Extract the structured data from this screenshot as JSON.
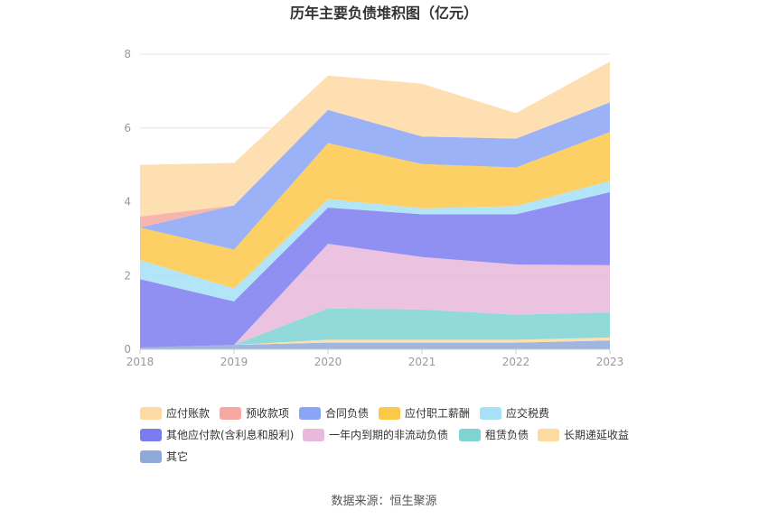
{
  "chart_data": {
    "type": "area",
    "stacked": true,
    "title": "历年主要负债堆积图（亿元）",
    "source": "数据来源：恒生聚源",
    "categories": [
      "2018",
      "2019",
      "2020",
      "2021",
      "2022",
      "2023"
    ],
    "ylim": [
      0,
      8
    ],
    "yticks": [
      0,
      2,
      4,
      6,
      8
    ],
    "grid": true,
    "legend_position": "bottom",
    "series": [
      {
        "name": "其它",
        "color": "#8eaadb",
        "values": [
          0.05,
          0.12,
          0.18,
          0.18,
          0.18,
          0.24
        ]
      },
      {
        "name": "长期递延收益",
        "color": "#fddba0",
        "values": [
          0.0,
          0.0,
          0.08,
          0.08,
          0.08,
          0.08
        ]
      },
      {
        "name": "租赁负债",
        "color": "#7fd3d3",
        "values": [
          0.0,
          0.0,
          0.85,
          0.82,
          0.68,
          0.68
        ]
      },
      {
        "name": "一年内到期的非流动负债",
        "color": "#e7b9dc",
        "values": [
          0.0,
          0.0,
          1.75,
          1.42,
          1.36,
          1.28
        ]
      },
      {
        "name": "其他应付款(含利息和股利)",
        "color": "#7b7cf0",
        "values": [
          1.85,
          1.18,
          0.98,
          1.16,
          1.36,
          1.98
        ]
      },
      {
        "name": "应交税费",
        "color": "#a6e1f7",
        "values": [
          0.52,
          0.35,
          0.23,
          0.16,
          0.22,
          0.3
        ]
      },
      {
        "name": "应付职工薪酬",
        "color": "#fbc849",
        "values": [
          0.88,
          1.05,
          1.52,
          1.2,
          1.05,
          1.33
        ]
      },
      {
        "name": "合同负债",
        "color": "#8aa4f6",
        "values": [
          0.0,
          1.2,
          0.9,
          0.75,
          0.78,
          0.8
        ]
      },
      {
        "name": "预收款项",
        "color": "#f7a8a0",
        "values": [
          0.3,
          0.0,
          0.0,
          0.0,
          0.0,
          0.0
        ]
      },
      {
        "name": "应付账款",
        "color": "#fdd9a3",
        "values": [
          1.4,
          1.15,
          0.93,
          1.43,
          0.69,
          1.11
        ]
      }
    ],
    "legend_order": [
      "应付账款",
      "预收款项",
      "合同负债",
      "应付职工薪酬",
      "应交税费",
      "其他应付款(含利息和股利)",
      "一年内到期的非流动负债",
      "租赁负债",
      "长期递延收益",
      "其它"
    ]
  }
}
